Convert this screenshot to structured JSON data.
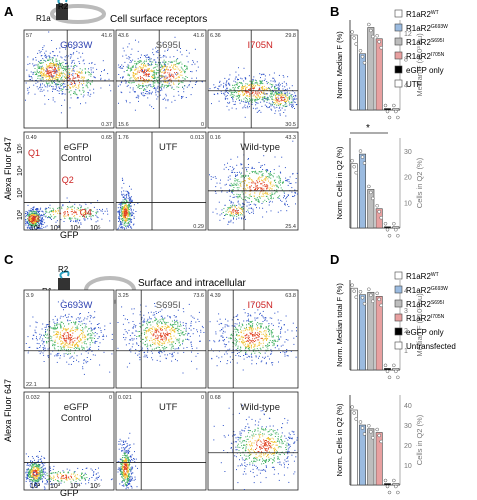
{
  "panel_a": {
    "letter": "A",
    "schematic": {
      "r2": "R2",
      "r1a": "R1a",
      "title": "Cell surface receptors"
    },
    "y_axis_label": "Alexa Fluor 647",
    "x_axis_label": "GFP",
    "x_ticks": [
      "10²",
      "10³",
      "10⁴",
      "10⁵"
    ],
    "y_ticks": [
      "10²",
      "10³",
      "10⁴",
      "10⁵"
    ],
    "plots": [
      {
        "label": "G693W",
        "q1": "57",
        "q2": "41.6",
        "q3": "",
        "q4": "0.37",
        "label_color": "#2b3fb0"
      },
      {
        "label": "S695I",
        "q1": "43.6",
        "q2": "41.6",
        "q3": "15.6",
        "q4": "0",
        "label_color": "#555555"
      },
      {
        "label": "I705N",
        "q1": "6.36",
        "q2": "29.8",
        "q3": "",
        "q4": "30.5",
        "label_color": "#cc2222"
      },
      {
        "label": "eGFP\nControl",
        "q1": "0.49",
        "q2": "0.65",
        "q3": "",
        "q4": "",
        "label_color": "#222222",
        "quadrants": [
          "Q1",
          "Q2",
          "Q3",
          "Q4"
        ]
      },
      {
        "label": "UTF",
        "q1": "1.76",
        "q2": "0.013",
        "q3": "",
        "q4": "0.29",
        "label_color": "#222222"
      },
      {
        "label": "Wild-type",
        "q1": "0.16",
        "q2": "43.3",
        "q3": "",
        "q4": "25.4",
        "label_color": "#222222"
      }
    ]
  },
  "panel_b": {
    "letter": "B",
    "top_ylabel": "Norm. Median F (%)",
    "top_ylabel_right": "Median F (x10³ au)",
    "top_right_ticks": [
      "4",
      "8",
      "12"
    ],
    "bottom_ylabel": "Norm. Cells in Q2 (%)",
    "bottom_ylabel_right": "Cells in Q2 (%)",
    "bottom_right_ticks": [
      "10",
      "20",
      "30"
    ],
    "significance": "*",
    "legend": [
      {
        "label": "R1aR2",
        "sup": "WT",
        "color": "#ffffff"
      },
      {
        "label": "R1aR2",
        "sup": "G693W",
        "color": "#9bbbe0"
      },
      {
        "label": "R1aR2",
        "sup": "S695I",
        "color": "#bdbdbd"
      },
      {
        "label": "R1aR2",
        "sup": "I705N",
        "color": "#e8a0a0"
      },
      {
        "label": "eGFP only",
        "sup": "",
        "color": "#000000"
      },
      {
        "label": "UTF",
        "sup": "",
        "color": "#ffffff"
      }
    ]
  },
  "panel_c": {
    "letter": "C",
    "schematic": {
      "r2": "R2",
      "r1a": "R1a",
      "title": "Surface and intracellular\nreceptors"
    },
    "y_axis_label": "Alexa Fluor 647",
    "x_axis_label": "GFP",
    "x_ticks": [
      "10²",
      "10³",
      "10⁴",
      "10⁵"
    ],
    "plots": [
      {
        "label": "G693W",
        "q1": "3.9",
        "q2": "",
        "q3": "22.1",
        "q4": "",
        "label_color": "#2b3fb0"
      },
      {
        "label": "S695I",
        "q1": "3.25",
        "q2": "73.6",
        "q3": "",
        "q4": "",
        "label_color": "#555555"
      },
      {
        "label": "I705N",
        "q1": "4.39",
        "q2": "63.8",
        "q3": "",
        "q4": "",
        "label_color": "#cc2222"
      },
      {
        "label": "eGFP\nControl",
        "q1": "0.032",
        "q2": "0",
        "q3": "",
        "q4": "",
        "label_color": "#222222"
      },
      {
        "label": "UTF",
        "q1": "0.021",
        "q2": "0",
        "q3": "",
        "q4": "",
        "label_color": "#222222"
      },
      {
        "label": "Wild-type",
        "q1": "0.68",
        "q2": "",
        "q3": "",
        "q4": "",
        "label_color": "#222222"
      }
    ]
  },
  "panel_d": {
    "letter": "D",
    "top_ylabel": "Norm. Median total F (%)",
    "top_ylabel_right": "Median F (x10³ au)",
    "top_right_ticks": [
      "1",
      "2",
      "3",
      "4"
    ],
    "bottom_ylabel": "Norm. Cells in Q2 (%)",
    "bottom_ylabel_right": "Cells in Q2 (%)",
    "bottom_right_ticks": [
      "10",
      "20",
      "30",
      "40"
    ],
    "legend": [
      {
        "label": "R1aR2",
        "sup": "WT",
        "color": "#ffffff"
      },
      {
        "label": "R1aR2",
        "sup": "G693W",
        "color": "#9bbbe0"
      },
      {
        "label": "R1aR2",
        "sup": "S695I",
        "color": "#bdbdbd"
      },
      {
        "label": "R1aR2",
        "sup": "I705N",
        "color": "#e8a0a0"
      },
      {
        "label": "eGFP only",
        "sup": "",
        "color": "#000000"
      },
      {
        "label": "Untransfected",
        "sup": "",
        "color": "#ffffff"
      }
    ]
  },
  "chart_data": [
    {
      "type": "bar",
      "categories": [
        "WT",
        "G693W",
        "S695I",
        "I705N",
        "eGFP only",
        "UTF"
      ],
      "values": [
        100,
        75,
        110,
        95,
        2,
        2
      ],
      "ylabel": "Norm. Median F (%)",
      "ylim": [
        0,
        120
      ]
    },
    {
      "type": "bar",
      "categories": [
        "WT",
        "G693W",
        "S695I",
        "I705N",
        "eGFP only",
        "UTF"
      ],
      "values": [
        100,
        115,
        60,
        30,
        2,
        2
      ],
      "ylabel": "Norm. Cells in Q2 (%)",
      "ylim": [
        0,
        140
      ]
    },
    {
      "type": "bar",
      "categories": [
        "WT",
        "G693W",
        "S695I",
        "I705N",
        "eGFP only",
        "Untransfected"
      ],
      "values": [
        100,
        92,
        95,
        90,
        2,
        2
      ],
      "ylabel": "Norm. Median total F (%)",
      "ylim": [
        0,
        110
      ]
    },
    {
      "type": "bar",
      "categories": [
        "WT",
        "G693W",
        "S695I",
        "I705N",
        "eGFP only",
        "Untransfected"
      ],
      "values": [
        100,
        80,
        75,
        70,
        2,
        2
      ],
      "ylabel": "Norm. Cells in Q2 (%)",
      "ylim": [
        0,
        120
      ]
    }
  ]
}
